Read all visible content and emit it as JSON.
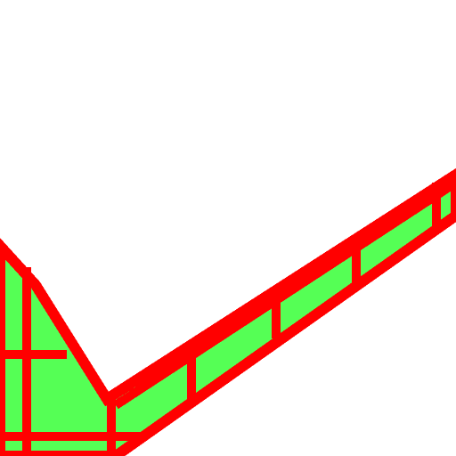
{
  "canvas": {
    "background_color": "#ffffff"
  },
  "graphic": {
    "icon": "checkmark-icon",
    "fill_color": "#55ff55",
    "outline_color": "#ff0000",
    "grid_line_color": "#ff0000"
  }
}
